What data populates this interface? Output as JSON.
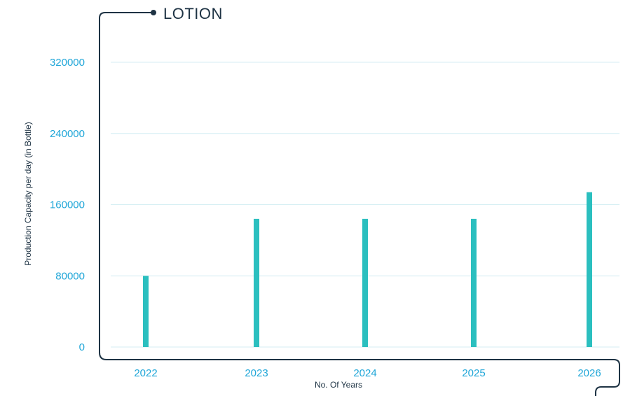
{
  "chart_data": {
    "type": "bar",
    "title": "LOTION",
    "xlabel": "No. Of Years",
    "ylabel": "Production Capacity per day (in Bottle)",
    "categories": [
      "2022",
      "2023",
      "2024",
      "2025",
      "2026"
    ],
    "values": [
      80000,
      144000,
      144000,
      144000,
      174000
    ],
    "ylim": [
      0,
      320000
    ],
    "yticks": [
      "0",
      "80000",
      "160000",
      "240000",
      "320000"
    ],
    "grid": true,
    "colors": {
      "bar": "#2bbfbf",
      "tick_text": "#1fa6d8",
      "frame": "#1e3344",
      "grid": "#d4eef3"
    }
  }
}
